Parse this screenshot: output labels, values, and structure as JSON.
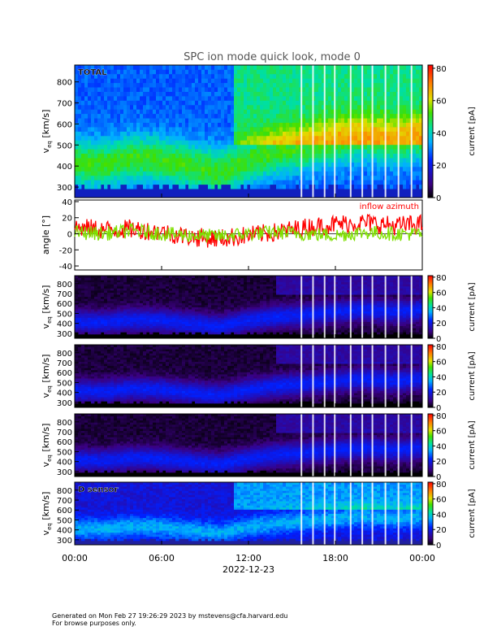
{
  "title": "SPC ion mode quick look, mode 0",
  "footer": {
    "line1": "Generated on Mon Feb 27 19:26:29 2023 by mstevens@cfa.harvard.edu",
    "line2": "For browse purposes only."
  },
  "chart_data": {
    "type": "heatmap",
    "date_label": "2022-12-23",
    "x_ticks": [
      "00:00",
      "06:00",
      "12:00",
      "18:00",
      "00:00"
    ],
    "x_range_hours": [
      0,
      24
    ],
    "spectrograms": [
      {
        "label": "TOTAL",
        "ylabel_main": "v",
        "ylabel_sub": "eq",
        "ylabel_unit": "[km/s]",
        "ylim": [
          250,
          880
        ],
        "y_ticks": [
          300,
          400,
          500,
          600,
          700,
          800
        ],
        "colorbar": {
          "label": "current [pA]",
          "range": [
            0,
            82
          ],
          "ticks": [
            0,
            20,
            40,
            60,
            80
          ]
        },
        "bulk_speed_kms": [
          [
            0,
            420
          ],
          [
            2,
            410
          ],
          [
            4,
            440
          ],
          [
            6,
            430
          ],
          [
            8,
            400
          ],
          [
            10,
            370
          ],
          [
            12,
            430
          ],
          [
            14,
            470
          ],
          [
            16,
            490
          ],
          [
            18,
            520
          ],
          [
            20,
            540
          ],
          [
            22,
            520
          ],
          [
            24,
            540
          ]
        ],
        "intensity": "high"
      },
      {
        "label": "",
        "ylabel_main": "v",
        "ylabel_sub": "eq",
        "ylabel_unit": "[km/s]",
        "ylim": [
          250,
          880
        ],
        "y_ticks": [
          300,
          400,
          500,
          600,
          700,
          800
        ],
        "colorbar": {
          "label": "current [pA]",
          "range": [
            0,
            82
          ],
          "ticks": [
            0,
            20,
            40,
            60,
            80
          ]
        },
        "bulk_speed_kms": [
          [
            0,
            420
          ],
          [
            2,
            410
          ],
          [
            4,
            440
          ],
          [
            6,
            430
          ],
          [
            8,
            400
          ],
          [
            10,
            370
          ],
          [
            12,
            430
          ],
          [
            14,
            470
          ],
          [
            16,
            490
          ],
          [
            18,
            520
          ],
          [
            20,
            540
          ],
          [
            22,
            520
          ],
          [
            24,
            540
          ]
        ],
        "intensity": "low"
      },
      {
        "label": "",
        "ylabel_main": "v",
        "ylabel_sub": "eq",
        "ylabel_unit": "[km/s]",
        "ylim": [
          250,
          880
        ],
        "y_ticks": [
          300,
          400,
          500,
          600,
          700,
          800
        ],
        "colorbar": {
          "label": "current [pA]",
          "range": [
            0,
            82
          ],
          "ticks": [
            0,
            20,
            40,
            60,
            80
          ]
        },
        "bulk_speed_kms": [
          [
            0,
            420
          ],
          [
            2,
            410
          ],
          [
            4,
            440
          ],
          [
            6,
            430
          ],
          [
            8,
            400
          ],
          [
            10,
            370
          ],
          [
            12,
            430
          ],
          [
            14,
            470
          ],
          [
            16,
            490
          ],
          [
            18,
            520
          ],
          [
            20,
            540
          ],
          [
            22,
            520
          ],
          [
            24,
            540
          ]
        ],
        "intensity": "low"
      },
      {
        "label": "",
        "ylabel_main": "v",
        "ylabel_sub": "eq",
        "ylabel_unit": "[km/s]",
        "ylim": [
          250,
          880
        ],
        "y_ticks": [
          300,
          400,
          500,
          600,
          700,
          800
        ],
        "colorbar": {
          "label": "current [pA]",
          "range": [
            0,
            82
          ],
          "ticks": [
            0,
            20,
            40,
            60,
            80
          ]
        },
        "bulk_speed_kms": [
          [
            0,
            420
          ],
          [
            2,
            410
          ],
          [
            4,
            440
          ],
          [
            6,
            430
          ],
          [
            8,
            400
          ],
          [
            10,
            370
          ],
          [
            12,
            430
          ],
          [
            14,
            470
          ],
          [
            16,
            490
          ],
          [
            18,
            520
          ],
          [
            20,
            540
          ],
          [
            22,
            520
          ],
          [
            24,
            540
          ]
        ],
        "intensity": "low"
      },
      {
        "label": "D sensor",
        "ylabel_main": "v",
        "ylabel_sub": "eq",
        "ylabel_unit": "[km/s]",
        "ylim": [
          250,
          880
        ],
        "y_ticks": [
          300,
          400,
          500,
          600,
          700,
          800
        ],
        "colorbar": {
          "label": "current [pA]",
          "range": [
            0,
            82
          ],
          "ticks": [
            0,
            20,
            40,
            60,
            80
          ]
        },
        "bulk_speed_kms": [
          [
            0,
            420
          ],
          [
            2,
            410
          ],
          [
            4,
            440
          ],
          [
            6,
            430
          ],
          [
            8,
            400
          ],
          [
            10,
            370
          ],
          [
            12,
            430
          ],
          [
            14,
            470
          ],
          [
            16,
            490
          ],
          [
            18,
            520
          ],
          [
            20,
            540
          ],
          [
            22,
            520
          ],
          [
            24,
            540
          ]
        ],
        "intensity": "medium"
      }
    ],
    "angle_panel": {
      "type": "line",
      "ylabel": "angle [°]",
      "ylim": [
        -45,
        42
      ],
      "y_ticks": [
        -40,
        -20,
        0,
        20,
        40
      ],
      "series": [
        {
          "name": "inflow azimuth",
          "color": "#ff0000",
          "values": [
            [
              0,
              8
            ],
            [
              2,
              5
            ],
            [
              4,
              6
            ],
            [
              6,
              2
            ],
            [
              8,
              -4
            ],
            [
              10,
              -6
            ],
            [
              12,
              -2
            ],
            [
              14,
              2
            ],
            [
              16,
              8
            ],
            [
              18,
              12
            ],
            [
              20,
              14
            ],
            [
              22,
              10
            ],
            [
              24,
              12
            ]
          ]
        },
        {
          "name": "",
          "color": "#7fe000",
          "values": [
            [
              0,
              2
            ],
            [
              2,
              0
            ],
            [
              4,
              4
            ],
            [
              6,
              0
            ],
            [
              8,
              -2
            ],
            [
              10,
              -3
            ],
            [
              12,
              0
            ],
            [
              14,
              2
            ],
            [
              16,
              0
            ],
            [
              18,
              -2
            ],
            [
              20,
              2
            ],
            [
              22,
              0
            ],
            [
              24,
              0
            ]
          ]
        }
      ]
    }
  }
}
